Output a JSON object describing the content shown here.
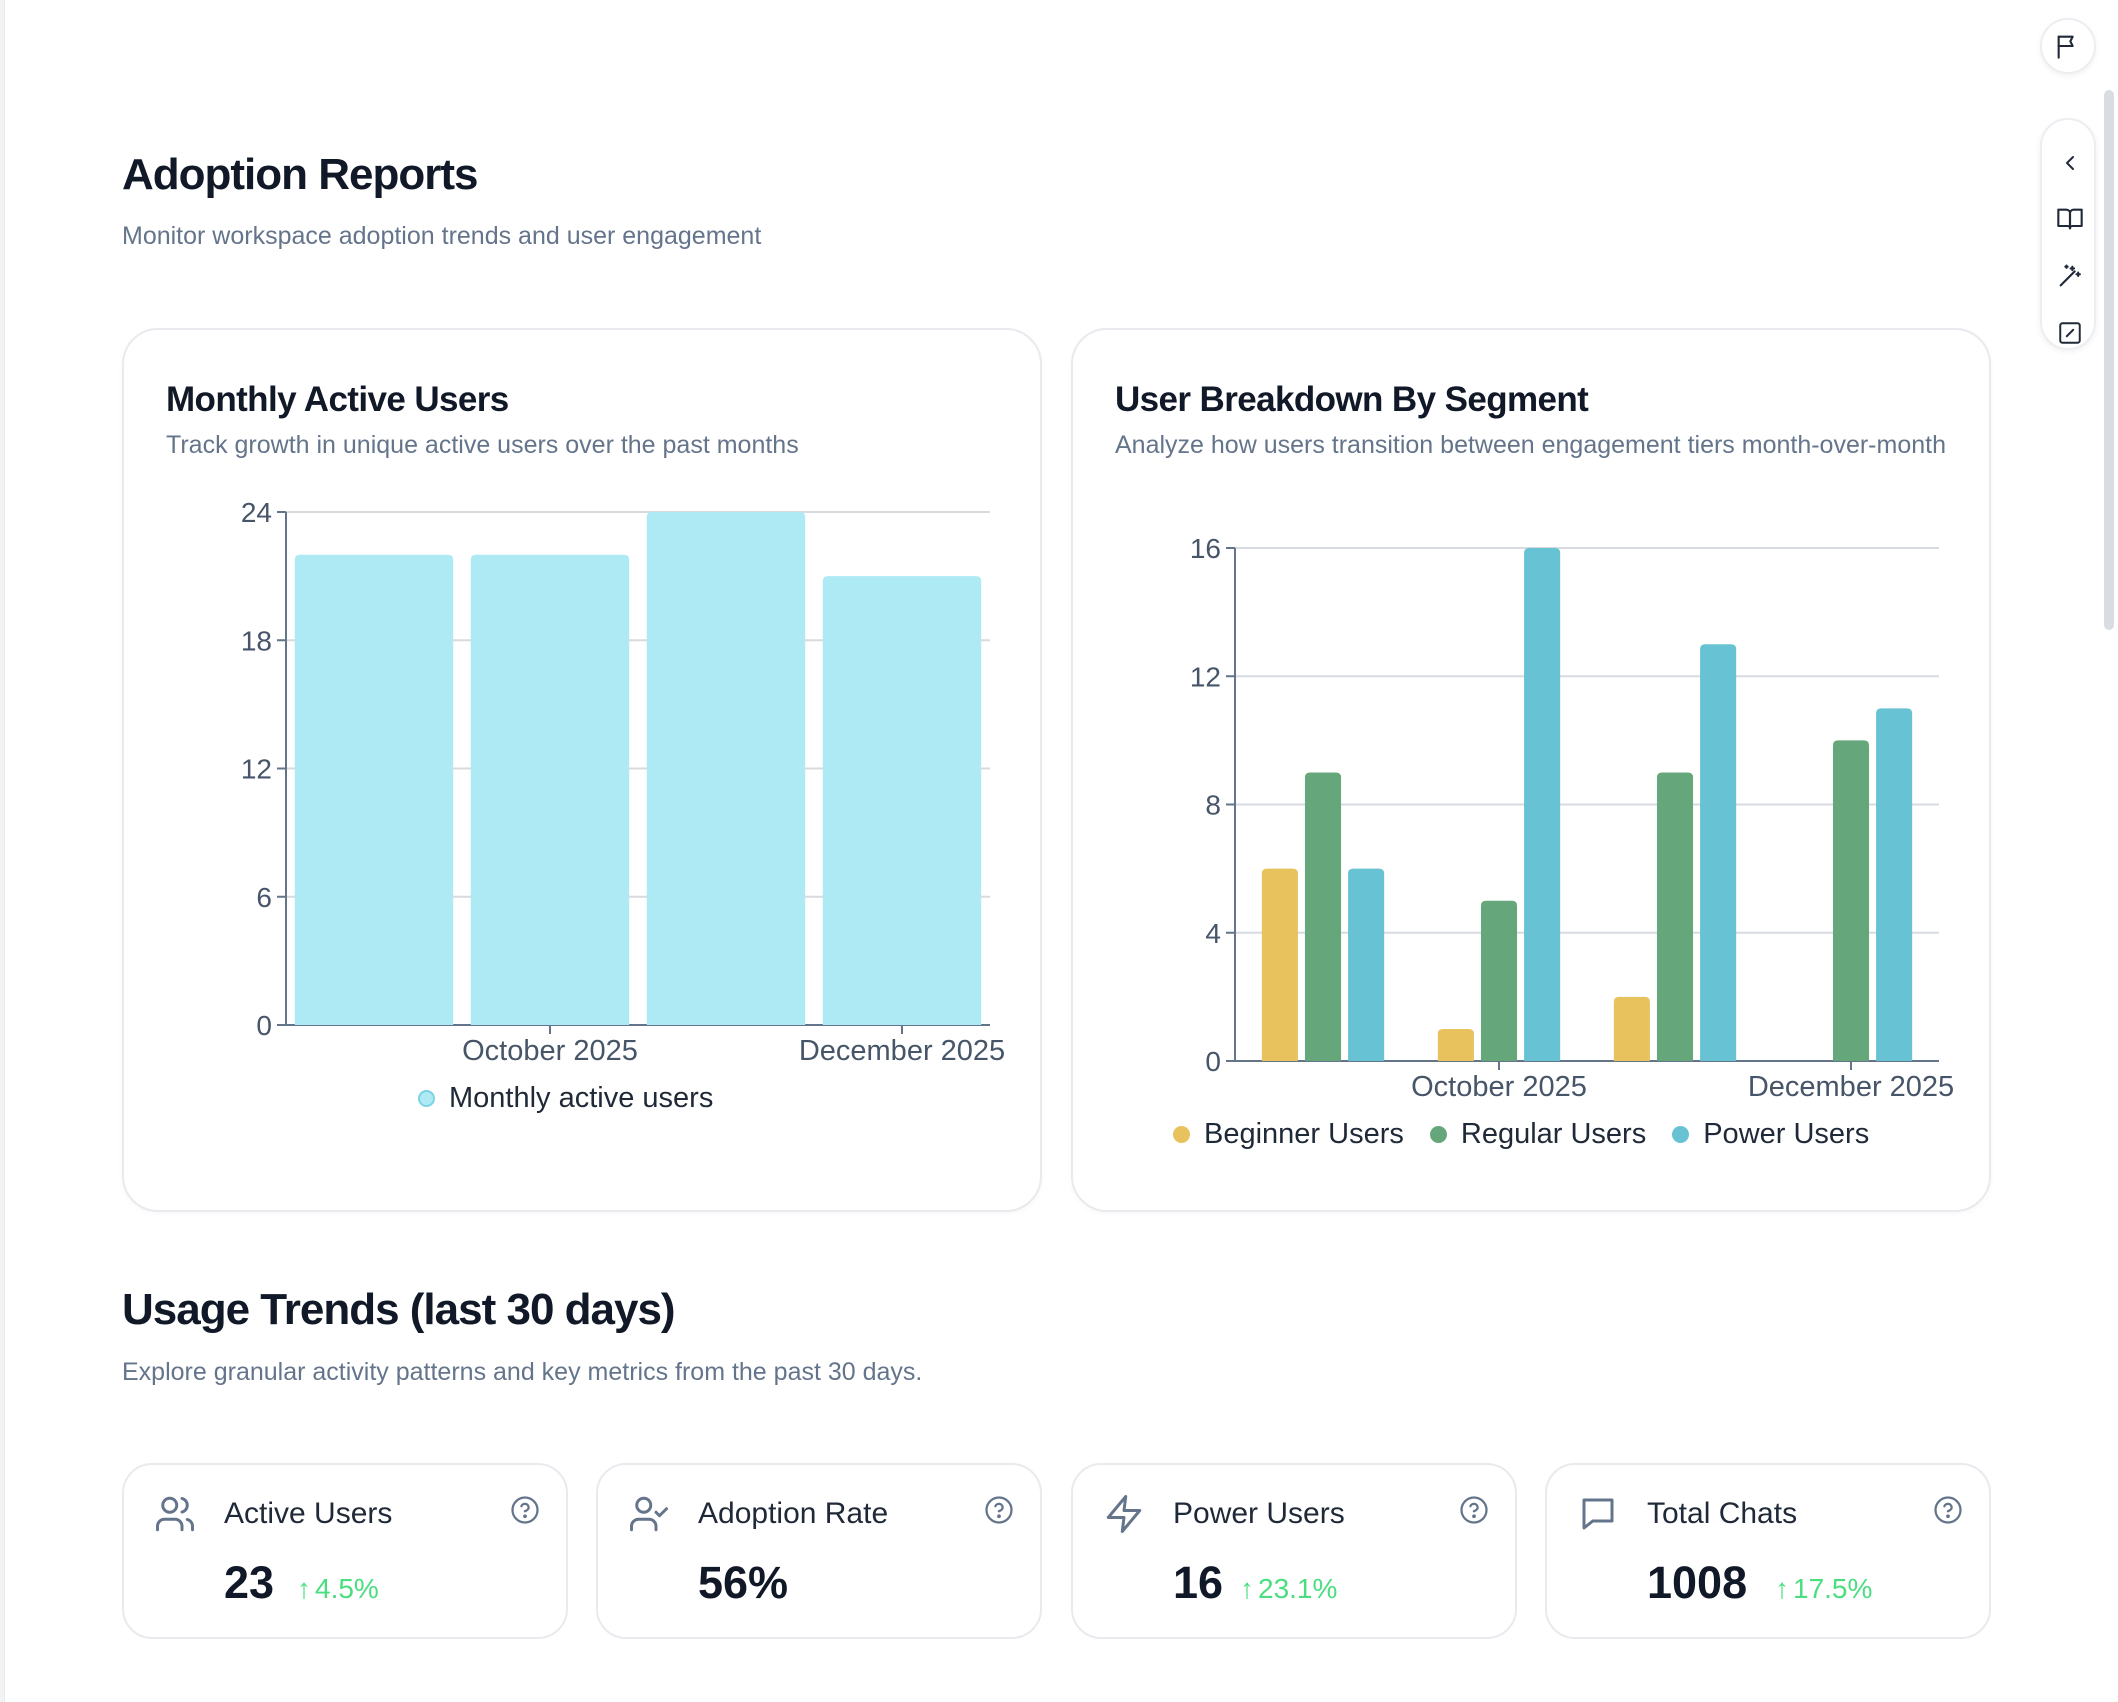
{
  "header": {
    "title": "Adoption Reports",
    "subtitle": "Monitor workspace adoption trends and user engagement"
  },
  "colors": {
    "mau_bar": "#aeeaf3",
    "beginner": "#e8c25c",
    "regular": "#65a77a",
    "power": "#67c2d3",
    "delta_up": "#4ade80"
  },
  "mau_card": {
    "title": "Monthly Active Users",
    "subtitle": "Track growth in unique active users over the past months",
    "legend": "Monthly active users"
  },
  "segment_card": {
    "title": "User Breakdown By Segment",
    "subtitle": "Analyze how users transition between engagement tiers month-over-month",
    "legend": [
      "Beginner Users",
      "Regular Users",
      "Power Users"
    ]
  },
  "chart_data": [
    {
      "type": "bar",
      "title": "Monthly Active Users",
      "categories": [
        "",
        "October 2025",
        "",
        "December 2025"
      ],
      "tick_labels": [
        "October 2025",
        "December 2025"
      ],
      "y_ticks": [
        "0",
        "6",
        "12",
        "18",
        "24"
      ],
      "ylim": [
        0,
        24
      ],
      "grid": true,
      "legend_position": "bottom",
      "series": [
        {
          "name": "Monthly active users",
          "values": [
            22,
            22,
            24,
            21
          ]
        }
      ]
    },
    {
      "type": "bar",
      "title": "User Breakdown By Segment",
      "categories": [
        "",
        "October 2025",
        "",
        "December 2025"
      ],
      "tick_labels": [
        "October 2025",
        "December 2025"
      ],
      "y_ticks": [
        "0",
        "4",
        "8",
        "12",
        "16"
      ],
      "ylim": [
        0,
        16
      ],
      "grid": true,
      "legend_position": "bottom",
      "series": [
        {
          "name": "Beginner Users",
          "values": [
            6,
            1,
            2,
            0
          ]
        },
        {
          "name": "Regular Users",
          "values": [
            9,
            5,
            9,
            10
          ]
        },
        {
          "name": "Power Users",
          "values": [
            6,
            16,
            13,
            11
          ]
        }
      ]
    }
  ],
  "usage": {
    "title": "Usage Trends (last 30 days)",
    "subtitle": "Explore granular activity patterns and key metrics from the past 30 days.",
    "metrics": [
      {
        "icon": "users-icon",
        "label": "Active Users",
        "value": "23",
        "delta": "4.5%"
      },
      {
        "icon": "user-check-icon",
        "label": "Adoption Rate",
        "value": "56%",
        "delta": ""
      },
      {
        "icon": "lightning-icon",
        "label": "Power Users",
        "value": "16",
        "delta": "23.1%"
      },
      {
        "icon": "chat-bubble-icon",
        "label": "Total Chats",
        "value": "1008",
        "delta": "17.5%"
      }
    ]
  },
  "toolbar": {
    "icons": [
      "flag-icon",
      "chevron-left-icon",
      "book-icon",
      "magic-wand-icon",
      "edit-square-icon"
    ]
  }
}
